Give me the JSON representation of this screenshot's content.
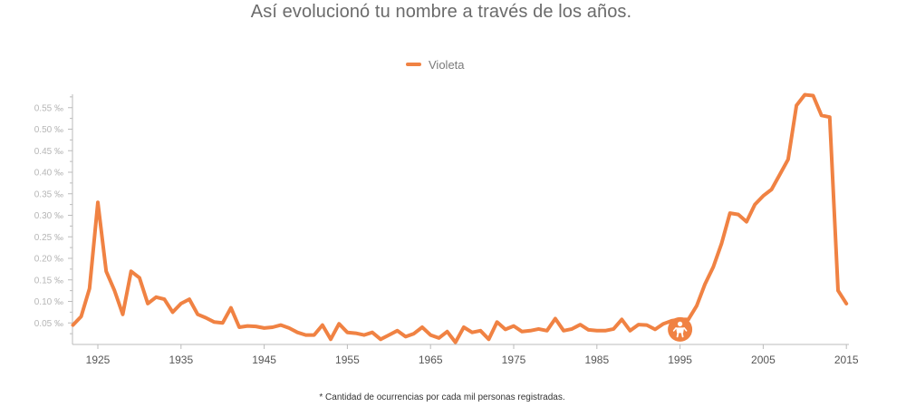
{
  "title": "Así evolucionó tu nombre a través de los años.",
  "footnote": "* Cantidad de ocurrencias por cada mil personas registradas.",
  "colors": {
    "series": "#f08243",
    "axis": "#bbbbbb",
    "y_tick_text": "#b6b6b6",
    "x_tick_text": "#555555",
    "marker_icon": "#ffffff"
  },
  "chart_data": {
    "type": "line",
    "title": "Así evolucionó tu nombre a través de los años.",
    "xlabel": "",
    "ylabel": "",
    "ylim": [
      0,
      0.6
    ],
    "xlim": [
      1922,
      2016
    ],
    "grid": false,
    "legend_position": "top-center",
    "y_ticks": [
      0.05,
      0.1,
      0.15,
      0.2,
      0.25,
      0.3,
      0.35,
      0.4,
      0.45,
      0.5,
      0.55
    ],
    "y_tick_labels": [
      "0.05 ‰",
      "0.10 ‰",
      "0.15 ‰",
      "0.20 ‰",
      "0.25 ‰",
      "0.30 ‰",
      "0.35 ‰",
      "0.40 ‰",
      "0.45 ‰",
      "0.50 ‰",
      "0.55 ‰"
    ],
    "x_ticks": [
      1925,
      1935,
      1945,
      1955,
      1965,
      1975,
      1985,
      1995,
      2005,
      2015
    ],
    "x_tick_labels": [
      "1925",
      "1935",
      "1945",
      "1955",
      "1965",
      "1975",
      "1985",
      "1995",
      "2005",
      "2015"
    ],
    "highlight": {
      "x": 1995,
      "y": 0.035,
      "icon": "baby-icon"
    },
    "series": [
      {
        "name": "Violeta",
        "x": [
          1922,
          1923,
          1924,
          1925,
          1926,
          1927,
          1928,
          1929,
          1930,
          1931,
          1932,
          1933,
          1934,
          1935,
          1936,
          1937,
          1938,
          1939,
          1940,
          1941,
          1942,
          1943,
          1944,
          1945,
          1946,
          1947,
          1948,
          1949,
          1950,
          1951,
          1952,
          1953,
          1954,
          1955,
          1956,
          1957,
          1958,
          1959,
          1960,
          1961,
          1962,
          1963,
          1964,
          1965,
          1966,
          1967,
          1968,
          1969,
          1970,
          1971,
          1972,
          1973,
          1974,
          1975,
          1976,
          1977,
          1978,
          1979,
          1980,
          1981,
          1982,
          1983,
          1984,
          1985,
          1986,
          1987,
          1988,
          1989,
          1990,
          1991,
          1992,
          1993,
          1994,
          1995,
          1996,
          1997,
          1998,
          1999,
          2000,
          2001,
          2002,
          2003,
          2004,
          2005,
          2006,
          2007,
          2008,
          2009,
          2010,
          2011,
          2012,
          2013,
          2014,
          2015
        ],
        "values": [
          0.045,
          0.065,
          0.13,
          0.33,
          0.17,
          0.125,
          0.07,
          0.17,
          0.155,
          0.095,
          0.11,
          0.105,
          0.075,
          0.095,
          0.105,
          0.07,
          0.062,
          0.052,
          0.05,
          0.085,
          0.04,
          0.043,
          0.042,
          0.038,
          0.04,
          0.045,
          0.038,
          0.028,
          0.022,
          0.022,
          0.045,
          0.012,
          0.048,
          0.028,
          0.026,
          0.022,
          0.028,
          0.012,
          0.022,
          0.032,
          0.018,
          0.025,
          0.04,
          0.022,
          0.015,
          0.03,
          0.005,
          0.04,
          0.028,
          0.032,
          0.012,
          0.052,
          0.035,
          0.043,
          0.03,
          0.032,
          0.036,
          0.032,
          0.06,
          0.032,
          0.036,
          0.046,
          0.034,
          0.032,
          0.032,
          0.036,
          0.058,
          0.032,
          0.046,
          0.045,
          0.035,
          0.048,
          0.055,
          0.058,
          0.058,
          0.09,
          0.14,
          0.18,
          0.235,
          0.305,
          0.302,
          0.285,
          0.325,
          0.345,
          0.36,
          0.395,
          0.43,
          0.555,
          0.58,
          0.578,
          0.532,
          0.528,
          0.125,
          0.095
        ]
      }
    ]
  }
}
